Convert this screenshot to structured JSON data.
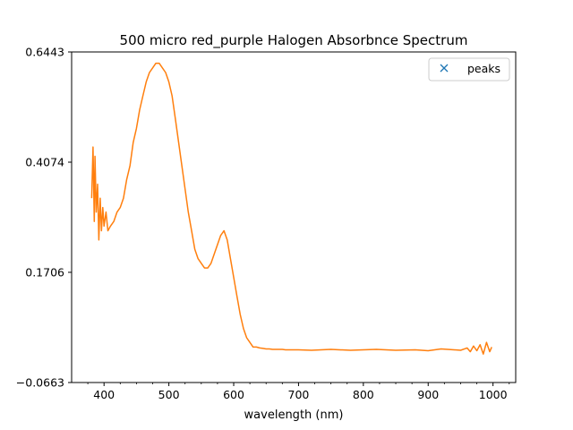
{
  "chart_data": {
    "type": "line",
    "title": "500 micro red_purple Halogen Absorbnce Spectrum",
    "xlabel": "wavelength (nm)",
    "ylabel": "",
    "xlim": [
      350,
      1035
    ],
    "ylim": [
      -0.0663,
      0.6443
    ],
    "x_ticks": [
      400,
      500,
      600,
      700,
      800,
      900,
      1000
    ],
    "x_tick_labels": [
      "400",
      "500",
      "600",
      "700",
      "800",
      "900",
      "1000"
    ],
    "y_ticks": [
      -0.0663,
      0.1706,
      0.4074,
      0.6443
    ],
    "y_tick_labels": [
      "−0.0663",
      "0.1706",
      "0.4074",
      "0.6443"
    ],
    "grid": false,
    "legend": {
      "position": "top-right",
      "entries": [
        {
          "label": "peaks",
          "marker": "x",
          "color": "#1f77b4"
        }
      ]
    },
    "series": [
      {
        "color": "#ff7f0e",
        "x": [
          381,
          383,
          385,
          386,
          388,
          390,
          392,
          394,
          396,
          398,
          400,
          403,
          406,
          410,
          415,
          420,
          425,
          430,
          435,
          440,
          445,
          450,
          455,
          460,
          465,
          470,
          475,
          480,
          485,
          490,
          495,
          500,
          505,
          510,
          515,
          520,
          525,
          530,
          535,
          540,
          545,
          550,
          555,
          560,
          565,
          570,
          575,
          580,
          585,
          590,
          595,
          600,
          605,
          610,
          615,
          620,
          625,
          630,
          635,
          640,
          645,
          650,
          655,
          660,
          665,
          670,
          675,
          680,
          690,
          700,
          720,
          750,
          780,
          800,
          820,
          850,
          880,
          900,
          920,
          940,
          950,
          960,
          965,
          970,
          975,
          980,
          985,
          990,
          995,
          998
        ],
        "y": [
          0.33,
          0.44,
          0.28,
          0.42,
          0.3,
          0.36,
          0.24,
          0.33,
          0.26,
          0.31,
          0.27,
          0.3,
          0.26,
          0.27,
          0.28,
          0.3,
          0.31,
          0.33,
          0.37,
          0.4,
          0.45,
          0.48,
          0.52,
          0.55,
          0.58,
          0.6,
          0.61,
          0.62,
          0.62,
          0.61,
          0.6,
          0.58,
          0.55,
          0.5,
          0.45,
          0.4,
          0.35,
          0.3,
          0.26,
          0.22,
          0.2,
          0.19,
          0.18,
          0.18,
          0.19,
          0.21,
          0.23,
          0.25,
          0.26,
          0.24,
          0.2,
          0.16,
          0.12,
          0.08,
          0.05,
          0.03,
          0.02,
          0.01,
          0.01,
          0.008,
          0.007,
          0.006,
          0.006,
          0.005,
          0.005,
          0.005,
          0.005,
          0.004,
          0.004,
          0.004,
          0.003,
          0.005,
          0.003,
          0.004,
          0.005,
          0.003,
          0.004,
          0.002,
          0.006,
          0.004,
          0.003,
          0.008,
          0.0,
          0.012,
          0.002,
          0.015,
          -0.005,
          0.02,
          0.0,
          0.01
        ]
      }
    ]
  }
}
